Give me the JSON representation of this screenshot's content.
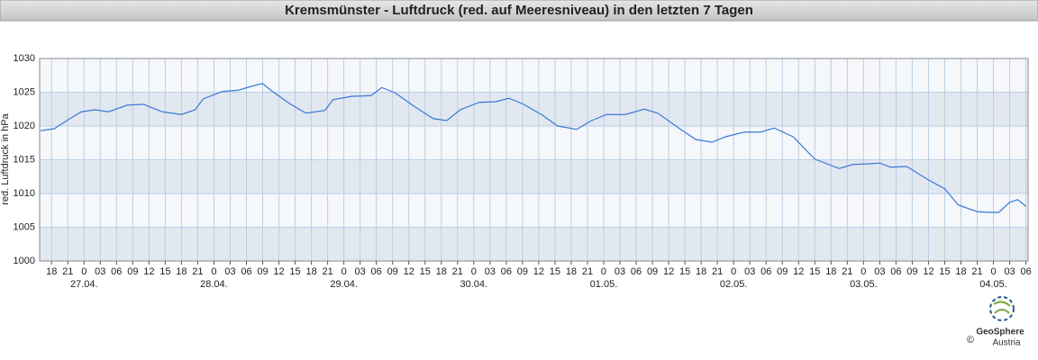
{
  "chart_data": {
    "type": "line",
    "title": "Kremsmünster - Luftdruck (red. auf Meeresniveau) in den letzten 7 Tagen",
    "ylabel": "red. Luftdruck in hPa",
    "color": "#3b78d6",
    "grid": true,
    "x": [
      -8,
      -5.5,
      -3,
      -0.5,
      2,
      4.5,
      8,
      11,
      14.5,
      18,
      20.5,
      22,
      25.5,
      28.5,
      31,
      33,
      34.5,
      38,
      41,
      44.5,
      46,
      49.5,
      53,
      55,
      57.5,
      61,
      64.5,
      67,
      69.5,
      73,
      76,
      78.5,
      81,
      84.5,
      87.5,
      91,
      93.5,
      96.5,
      100,
      103.5,
      106,
      109.5,
      113,
      116,
      118.5,
      122,
      125,
      127.5,
      131,
      135,
      139.5,
      142,
      145,
      147,
      149,
      152,
      156,
      159,
      161.5,
      165,
      167.5,
      169,
      171,
      172.5,
      174
    ],
    "values": [
      1019.3,
      1019.6,
      1020.9,
      1022.1,
      1022.4,
      1022.1,
      1023.1,
      1023.2,
      1022.1,
      1021.7,
      1022.4,
      1024,
      1025.1,
      1025.3,
      1025.9,
      1026.3,
      1025.3,
      1023.3,
      1021.9,
      1022.3,
      1023.9,
      1024.4,
      1024.5,
      1025.7,
      1024.9,
      1022.9,
      1021.1,
      1020.8,
      1022.4,
      1023.5,
      1023.6,
      1024.1,
      1023.3,
      1021.7,
      1020,
      1019.5,
      1020.7,
      1021.7,
      1021.7,
      1022.5,
      1021.9,
      1019.9,
      1018,
      1017.6,
      1018.4,
      1019.1,
      1019.1,
      1019.7,
      1018.4,
      1015.1,
      1013.7,
      1014.3,
      1014.4,
      1014.5,
      1013.9,
      1014,
      1012,
      1010.7,
      1008.3,
      1007.3,
      1007.2,
      1007.2,
      1008.7,
      1009.1,
      1008.1
    ],
    "xlim": [
      -8.2,
      174.4
    ],
    "xticks": [
      {
        "value": -6,
        "label": "18"
      },
      {
        "value": -3,
        "label": "21"
      },
      {
        "value": 0,
        "label": "0"
      },
      {
        "value": 3,
        "label": "03"
      },
      {
        "value": 6,
        "label": "06"
      },
      {
        "value": 9,
        "label": "09"
      },
      {
        "value": 12,
        "label": "12"
      },
      {
        "value": 15,
        "label": "15"
      },
      {
        "value": 18,
        "label": "18"
      },
      {
        "value": 21,
        "label": "21"
      },
      {
        "value": 24,
        "label": "0"
      },
      {
        "value": 27,
        "label": "03"
      },
      {
        "value": 30,
        "label": "06"
      },
      {
        "value": 33,
        "label": "09"
      },
      {
        "value": 36,
        "label": "12"
      },
      {
        "value": 39,
        "label": "15"
      },
      {
        "value": 42,
        "label": "18"
      },
      {
        "value": 45,
        "label": "21"
      },
      {
        "value": 48,
        "label": "0"
      },
      {
        "value": 51,
        "label": "03"
      },
      {
        "value": 54,
        "label": "06"
      },
      {
        "value": 57,
        "label": "09"
      },
      {
        "value": 60,
        "label": "12"
      },
      {
        "value": 63,
        "label": "15"
      },
      {
        "value": 66,
        "label": "18"
      },
      {
        "value": 69,
        "label": "21"
      },
      {
        "value": 72,
        "label": "0"
      },
      {
        "value": 75,
        "label": "03"
      },
      {
        "value": 78,
        "label": "06"
      },
      {
        "value": 81,
        "label": "09"
      },
      {
        "value": 84,
        "label": "12"
      },
      {
        "value": 87,
        "label": "15"
      },
      {
        "value": 90,
        "label": "18"
      },
      {
        "value": 93,
        "label": "21"
      },
      {
        "value": 96,
        "label": "0"
      },
      {
        "value": 99,
        "label": "03"
      },
      {
        "value": 102,
        "label": "06"
      },
      {
        "value": 105,
        "label": "09"
      },
      {
        "value": 108,
        "label": "12"
      },
      {
        "value": 111,
        "label": "15"
      },
      {
        "value": 114,
        "label": "18"
      },
      {
        "value": 117,
        "label": "21"
      },
      {
        "value": 120,
        "label": "0"
      },
      {
        "value": 123,
        "label": "03"
      },
      {
        "value": 126,
        "label": "06"
      },
      {
        "value": 129,
        "label": "09"
      },
      {
        "value": 132,
        "label": "12"
      },
      {
        "value": 135,
        "label": "15"
      },
      {
        "value": 138,
        "label": "18"
      },
      {
        "value": 141,
        "label": "21"
      },
      {
        "value": 144,
        "label": "0"
      },
      {
        "value": 147,
        "label": "03"
      },
      {
        "value": 150,
        "label": "06"
      },
      {
        "value": 153,
        "label": "09"
      },
      {
        "value": 156,
        "label": "12"
      },
      {
        "value": 159,
        "label": "15"
      },
      {
        "value": 162,
        "label": "18"
      },
      {
        "value": 165,
        "label": "21"
      },
      {
        "value": 168,
        "label": "0"
      },
      {
        "value": 171,
        "label": "03"
      },
      {
        "value": 174,
        "label": "06"
      }
    ],
    "date_labels": [
      {
        "value": 0,
        "label": "27.04."
      },
      {
        "value": 24,
        "label": "28.04."
      },
      {
        "value": 48,
        "label": "29.04."
      },
      {
        "value": 72,
        "label": "30.04."
      },
      {
        "value": 96,
        "label": "01.05."
      },
      {
        "value": 120,
        "label": "02.05."
      },
      {
        "value": 144,
        "label": "03.05."
      },
      {
        "value": 168,
        "label": "04.05."
      }
    ],
    "ylim": [
      1000,
      1030
    ],
    "yticks": [
      1000,
      1005,
      1010,
      1015,
      1020,
      1025,
      1030
    ]
  },
  "logo": {
    "name": "GeoSphere",
    "sub": "Austria",
    "copyright": "©"
  }
}
